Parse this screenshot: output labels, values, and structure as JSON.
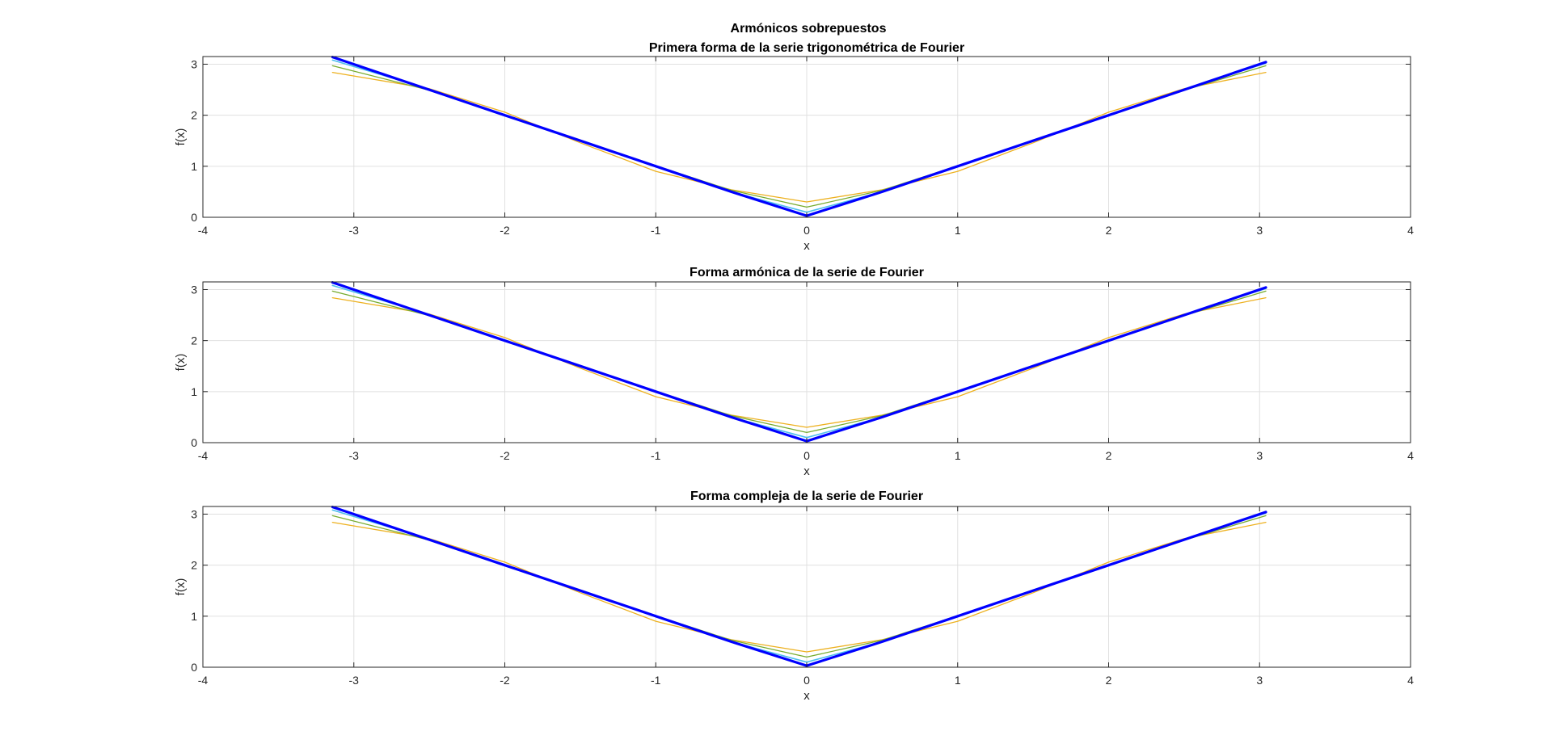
{
  "figure": {
    "suptitle": "Armónicos sobrepuestos"
  },
  "colors": {
    "approx_1": "#EDB120",
    "approx_2": "#77AC30",
    "approx_3": "#4DBEEE",
    "target": "#0000FF",
    "grid": "#E0E0E0",
    "axes": "#262626"
  },
  "chart_data": [
    {
      "type": "line",
      "title": "Primera forma de la serie trigonométrica de Fourier",
      "xlabel": "x",
      "ylabel": "f(x)",
      "xlim": [
        -4,
        4
      ],
      "ylim": [
        0,
        3.15
      ],
      "xticks": [
        "-4",
        "-3",
        "-2",
        "-1",
        "0",
        "1",
        "2",
        "3",
        "4"
      ],
      "yticks": [
        "0",
        "1",
        "2",
        "3"
      ],
      "grid": true,
      "x": [
        -3.1416,
        -2.5,
        -2.0,
        -1.5,
        -1.0,
        -0.5,
        0.0,
        0.5,
        1.0,
        1.5,
        2.0,
        2.5,
        3.0416
      ],
      "series": [
        {
          "values": [
            2.84,
            2.52,
            2.06,
            1.46,
            0.9,
            0.54,
            0.3,
            0.54,
            0.9,
            1.46,
            2.06,
            2.52,
            2.84
          ]
        },
        {
          "values": [
            2.97,
            2.49,
            1.99,
            1.5,
            1.01,
            0.53,
            0.2,
            0.53,
            1.01,
            1.5,
            1.99,
            2.49,
            2.97
          ]
        },
        {
          "values": [
            3.08,
            2.51,
            2.0,
            1.5,
            1.0,
            0.5,
            0.1,
            0.5,
            1.0,
            1.5,
            2.0,
            2.51,
            3.02
          ]
        },
        {
          "values": [
            3.14,
            2.5,
            2.0,
            1.5,
            1.0,
            0.5,
            0.03,
            0.5,
            1.0,
            1.5,
            2.0,
            2.5,
            3.04
          ]
        }
      ]
    },
    {
      "type": "line",
      "title": "Forma armónica de la serie de Fourier",
      "xlabel": "x",
      "ylabel": "f(x)",
      "xlim": [
        -4,
        4
      ],
      "ylim": [
        0,
        3.15
      ],
      "xticks": [
        "-4",
        "-3",
        "-2",
        "-1",
        "0",
        "1",
        "2",
        "3",
        "4"
      ],
      "yticks": [
        "0",
        "1",
        "2",
        "3"
      ],
      "grid": true,
      "x": [
        -3.1416,
        -2.5,
        -2.0,
        -1.5,
        -1.0,
        -0.5,
        0.0,
        0.5,
        1.0,
        1.5,
        2.0,
        2.5,
        3.0416
      ],
      "series": [
        {
          "values": [
            2.84,
            2.52,
            2.06,
            1.46,
            0.9,
            0.54,
            0.3,
            0.54,
            0.9,
            1.46,
            2.06,
            2.52,
            2.84
          ]
        },
        {
          "values": [
            2.97,
            2.49,
            1.99,
            1.5,
            1.01,
            0.53,
            0.2,
            0.53,
            1.01,
            1.5,
            1.99,
            2.49,
            2.97
          ]
        },
        {
          "values": [
            3.08,
            2.51,
            2.0,
            1.5,
            1.0,
            0.5,
            0.1,
            0.5,
            1.0,
            1.5,
            2.0,
            2.51,
            3.02
          ]
        },
        {
          "values": [
            3.14,
            2.5,
            2.0,
            1.5,
            1.0,
            0.5,
            0.03,
            0.5,
            1.0,
            1.5,
            2.0,
            2.5,
            3.04
          ]
        }
      ]
    },
    {
      "type": "line",
      "title": "Forma compleja de la serie de Fourier",
      "xlabel": "x",
      "ylabel": "f(x)",
      "xlim": [
        -4,
        4
      ],
      "ylim": [
        0,
        3.15
      ],
      "xticks": [
        "-4",
        "-3",
        "-2",
        "-1",
        "0",
        "1",
        "2",
        "3",
        "4"
      ],
      "yticks": [
        "0",
        "1",
        "2",
        "3"
      ],
      "grid": true,
      "x": [
        -3.1416,
        -2.5,
        -2.0,
        -1.5,
        -1.0,
        -0.5,
        0.0,
        0.5,
        1.0,
        1.5,
        2.0,
        2.5,
        3.0416
      ],
      "series": [
        {
          "values": [
            2.84,
            2.52,
            2.06,
            1.46,
            0.9,
            0.54,
            0.3,
            0.54,
            0.9,
            1.46,
            2.06,
            2.52,
            2.84
          ]
        },
        {
          "values": [
            2.97,
            2.49,
            1.99,
            1.5,
            1.01,
            0.53,
            0.2,
            0.53,
            1.01,
            1.5,
            1.99,
            2.49,
            2.97
          ]
        },
        {
          "values": [
            3.08,
            2.51,
            2.0,
            1.5,
            1.0,
            0.5,
            0.1,
            0.5,
            1.0,
            1.5,
            2.0,
            2.51,
            3.02
          ]
        },
        {
          "values": [
            3.14,
            2.5,
            2.0,
            1.5,
            1.0,
            0.5,
            0.03,
            0.5,
            1.0,
            1.5,
            2.0,
            2.5,
            3.04
          ]
        }
      ]
    }
  ]
}
